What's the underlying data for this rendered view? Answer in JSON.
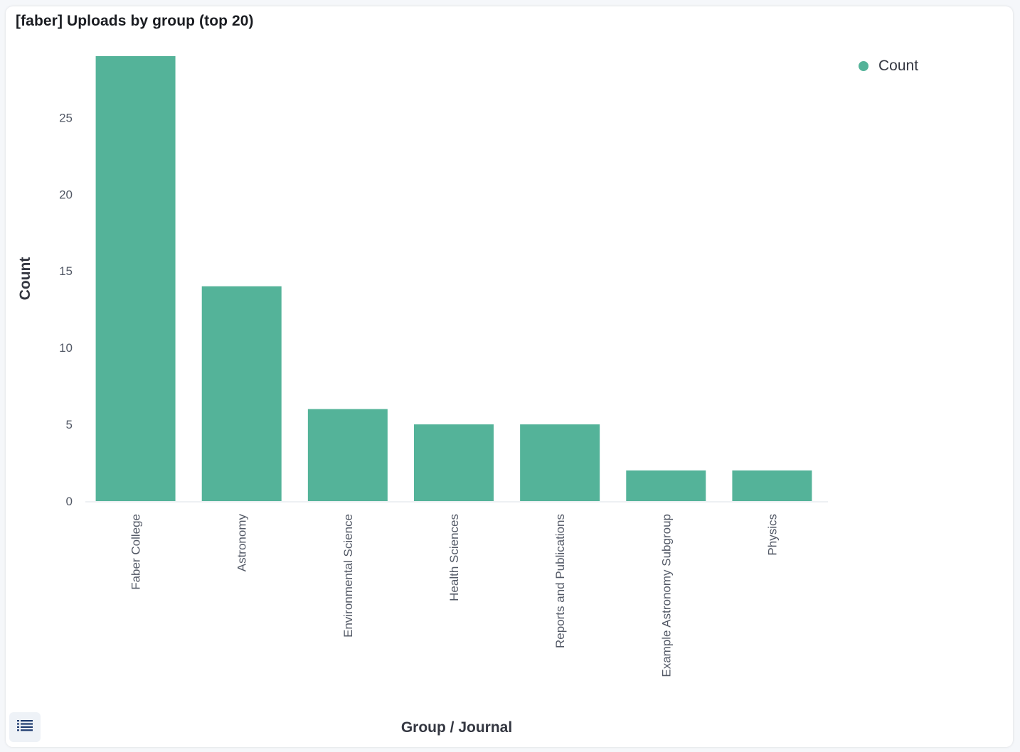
{
  "panel": {
    "title": "[faber] Uploads by group (top 20)"
  },
  "legend_toggle": {
    "icon": "list-icon"
  },
  "colors": {
    "bar": "#54b399",
    "axis_text": "#535966",
    "title_text": "#1a1c21",
    "axis_line": "#eef0f3"
  },
  "chart_data": {
    "type": "bar",
    "title": "[faber] Uploads by group (top 20)",
    "xlabel": "Group / Journal",
    "ylabel": "Count",
    "categories": [
      "Faber College",
      "Astronomy",
      "Environmental Science",
      "Health Sciences",
      "Reports and Publications",
      "Example Astronomy Subgroup",
      "Physics"
    ],
    "series": [
      {
        "name": "Count",
        "values": [
          29,
          14,
          6,
          5,
          5,
          2,
          2
        ]
      }
    ],
    "ylim": [
      0,
      29
    ],
    "yticks": [
      0,
      5,
      10,
      15,
      20,
      25
    ],
    "grid": false,
    "legend": {
      "position": "top-right",
      "entries": [
        "Count"
      ]
    }
  }
}
